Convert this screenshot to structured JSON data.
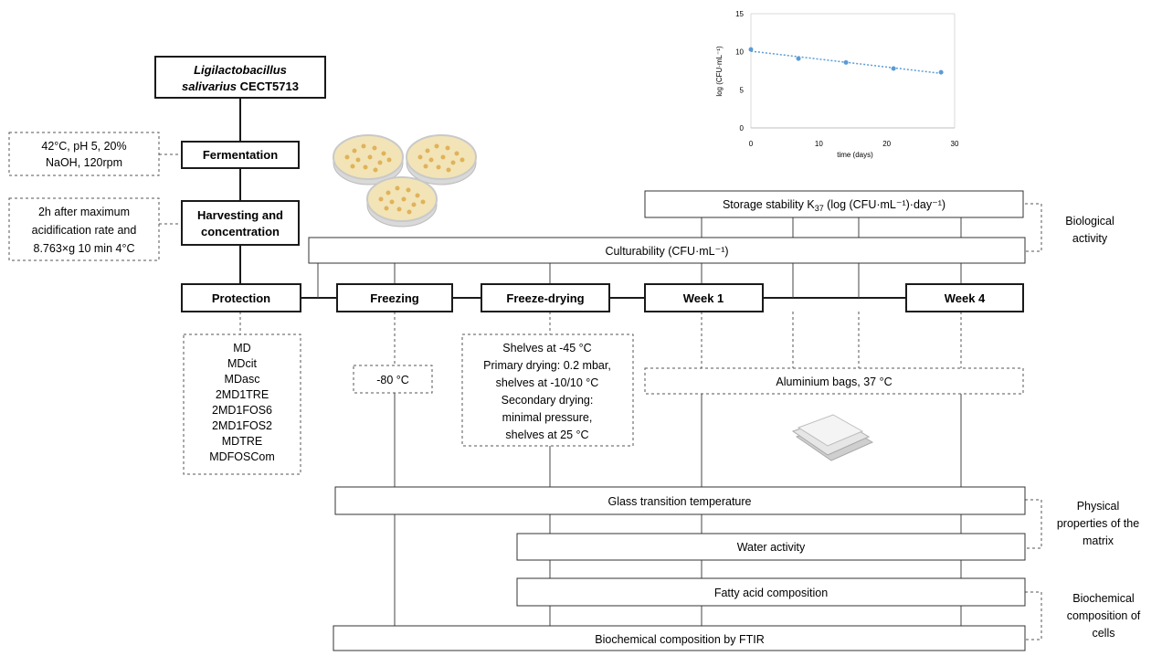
{
  "organism": {
    "line1": "Ligilactobacillus",
    "line2_italic": "salivarius",
    "line2_strain": " CECT5713"
  },
  "steps": {
    "fermentation": "Fermentation",
    "harvesting_line1": "Harvesting and",
    "harvesting_line2": "concentration",
    "protection": "Protection",
    "freezing": "Freezing",
    "freeze_drying": "Freeze-drying",
    "week1": "Week 1",
    "week4": "Week 4"
  },
  "conditions": {
    "fermentation": [
      "42°C, pH 5, 20%",
      "NaOH, 120rpm"
    ],
    "harvesting": [
      "2h after maximum",
      "acidification rate and",
      "8.763×g 10 min 4°C"
    ],
    "protection": [
      "MD",
      "MDcit",
      "MDasc",
      "2MD1TRE",
      "2MD1FOS6",
      "2MD1FOS2",
      "MDTRE",
      "MDFOSCom"
    ],
    "freezing": "-80 °C",
    "freeze_drying": [
      "Shelves at -45 °C",
      "Primary drying: 0.2 mbar,",
      "shelves at -10/10 °C",
      "Secondary drying:",
      "minimal pressure,",
      "shelves at 25 °C"
    ],
    "storage": "Aluminium bags, 37 °C"
  },
  "analyses": {
    "storage_stability_prefix": "Storage stability K",
    "storage_stability_sub": "37",
    "storage_stability_suffix": " (log (CFU·mL⁻¹)·day⁻¹)",
    "culturability": "Culturability (CFU·mL⁻¹)",
    "glass_transition": "Glass transition temperature",
    "water_activity": "Water activity",
    "fatty_acid": "Fatty acid composition",
    "ftir": "Biochemical composition by FTIR"
  },
  "groups": {
    "biological": [
      "Biological",
      "activity"
    ],
    "physical": [
      "Physical",
      "properties of the",
      "matrix"
    ],
    "biochemical": [
      "Biochemical",
      "composition of",
      "cells"
    ]
  },
  "chart_data": {
    "type": "scatter",
    "xlabel": "time (days)",
    "ylabel": "log (CFU·mL⁻¹)",
    "xlim": [
      0,
      30
    ],
    "ylim": [
      0,
      15
    ],
    "xticks": [
      0,
      10,
      20,
      30
    ],
    "yticks": [
      0,
      5,
      10,
      15
    ],
    "x": [
      0,
      7,
      14,
      21,
      28
    ],
    "y": [
      10.3,
      9.1,
      8.6,
      7.8,
      7.3
    ],
    "trendline": true,
    "color": "#5b9bd5"
  }
}
